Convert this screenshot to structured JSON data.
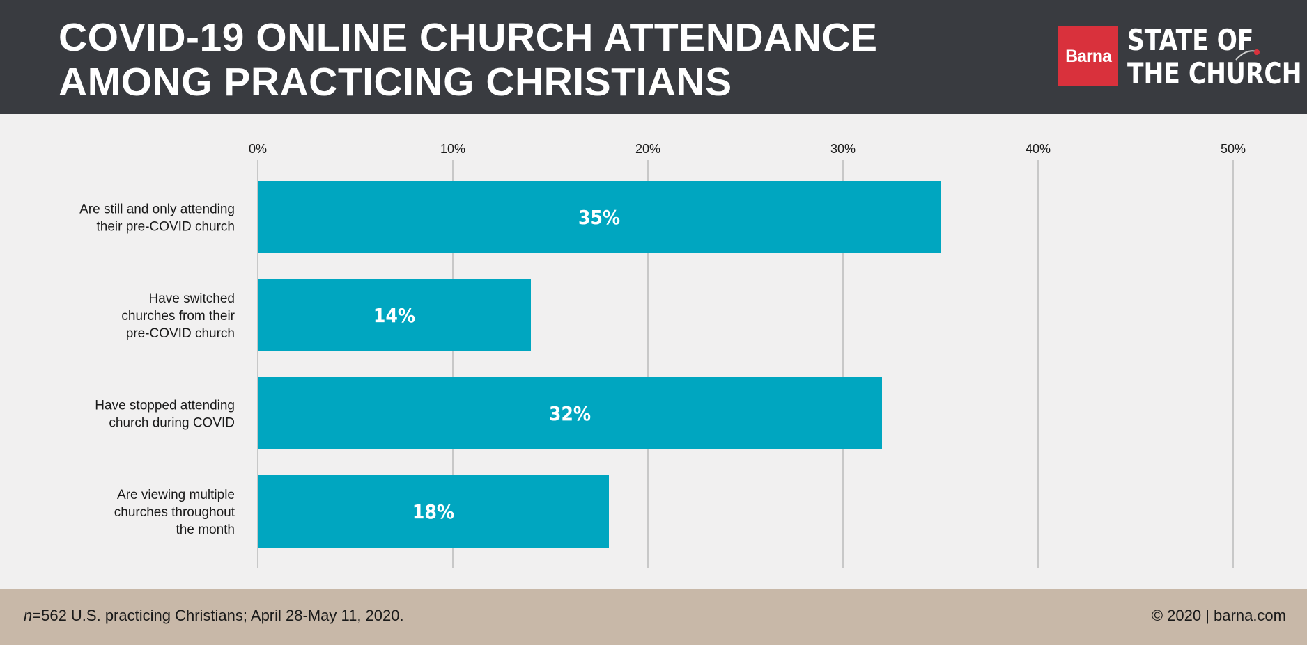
{
  "header": {
    "title_line1": "COVID-19 ONLINE CHURCH ATTENDANCE",
    "title_line2": "AMONG PRACTICING CHRISTIANS",
    "logo_brand": "Barna",
    "logo_line1": "STATE OF",
    "logo_line2": "THE CHURCH"
  },
  "colors": {
    "header_bg": "#393b40",
    "bar": "#00a6c0",
    "brand_red": "#d9313c",
    "footer_bg": "#c8b8a8",
    "grid": "#a0a0a0"
  },
  "chart_data": {
    "type": "bar",
    "orientation": "horizontal",
    "title": "COVID-19 ONLINE CHURCH ATTENDANCE AMONG PRACTICING CHRISTIANS",
    "categories": [
      [
        "Are still and only attending",
        "their pre-COVID church"
      ],
      [
        "Have switched",
        "churches from their",
        "pre-COVID church"
      ],
      [
        "Have stopped attending",
        "church during COVID"
      ],
      [
        "Are viewing multiple",
        "churches throughout",
        "the month"
      ]
    ],
    "values": [
      35,
      14,
      32,
      18
    ],
    "value_labels": [
      "35%",
      "14%",
      "32%",
      "18%"
    ],
    "xlim": [
      0,
      50
    ],
    "ticks": [
      0,
      10,
      20,
      30,
      40,
      50
    ],
    "tick_labels": [
      "0%",
      "10%",
      "20%",
      "30%",
      "40%",
      "50%"
    ],
    "grid": true,
    "xlabel": "",
    "ylabel": ""
  },
  "footer": {
    "n_label": "n",
    "note": "=562 U.S. practicing Christians; April 28-May 11, 2020.",
    "copyright": "© 2020 | barna.com"
  }
}
